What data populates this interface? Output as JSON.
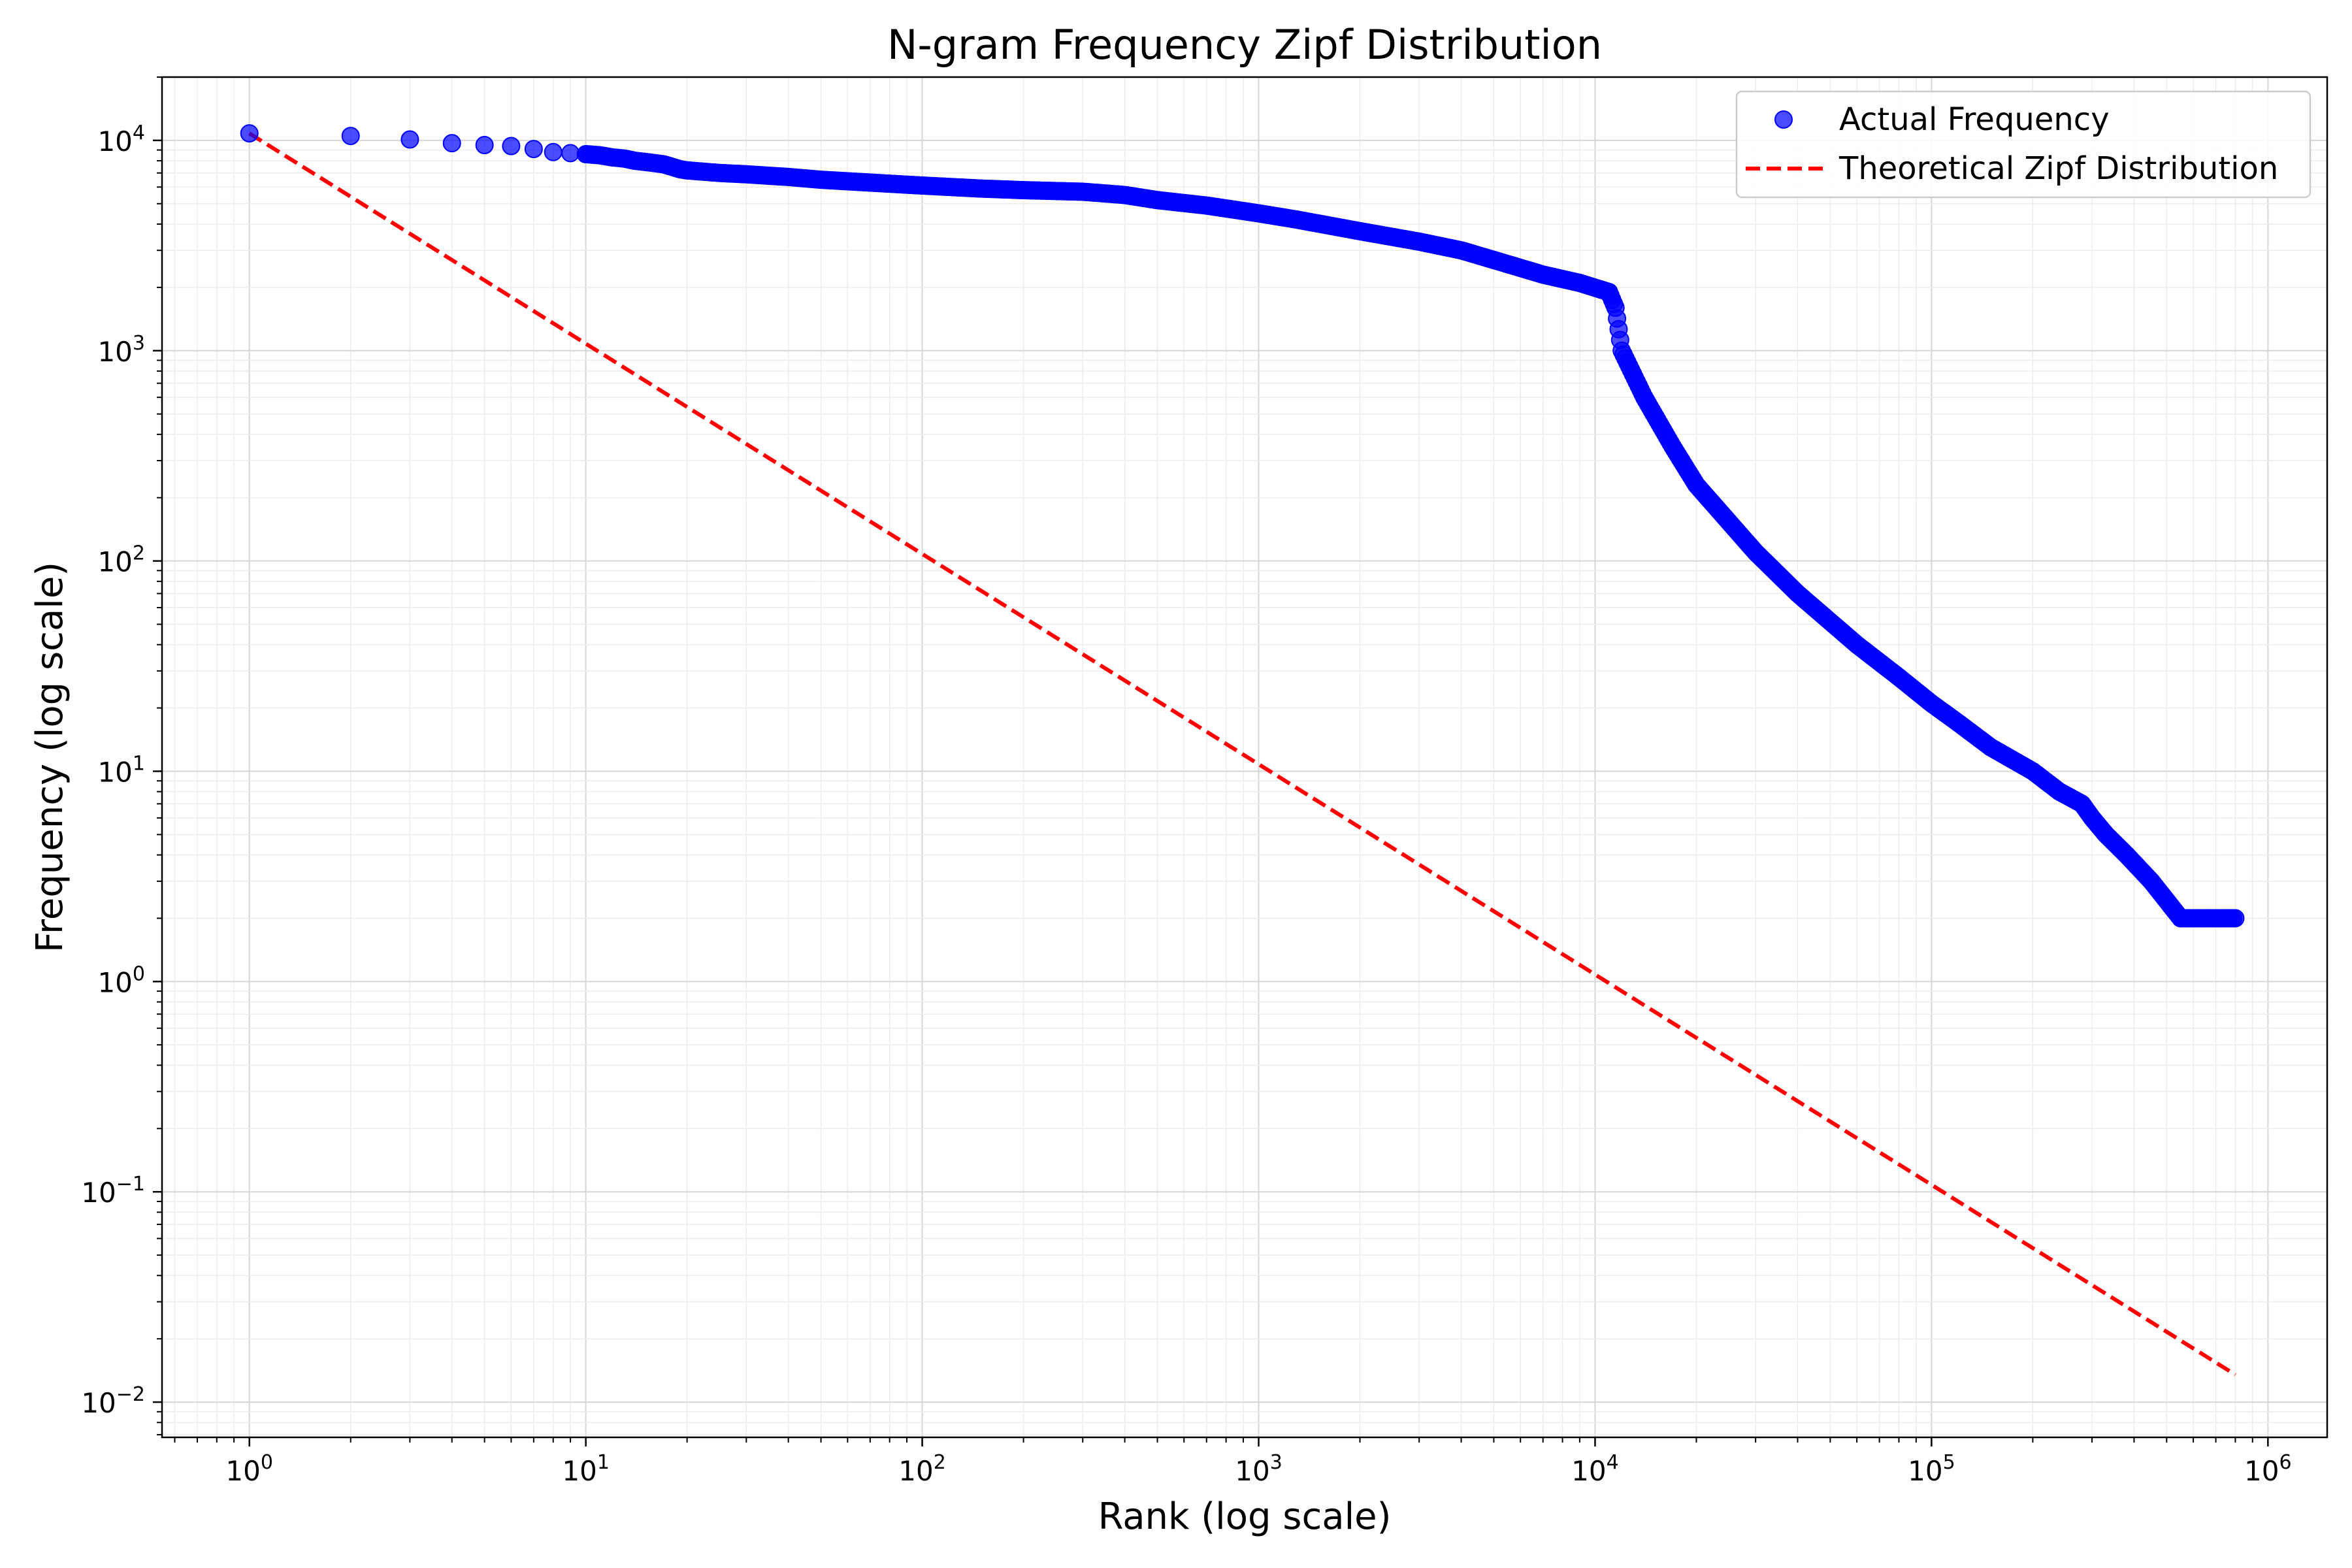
{
  "chart_data": {
    "type": "scatter",
    "title": "N-gram Frequency Zipf Distribution",
    "xlabel": "Rank (log scale)",
    "ylabel": "Frequency (log scale)",
    "x_scale": "log",
    "y_scale": "log",
    "xlim": [
      0.55,
      1500000
    ],
    "ylim": [
      0.0068,
      20000
    ],
    "x_ticks": [
      {
        "value": 1,
        "base": "10",
        "exp": "0"
      },
      {
        "value": 10,
        "base": "10",
        "exp": "1"
      },
      {
        "value": 100,
        "base": "10",
        "exp": "2"
      },
      {
        "value": 1000,
        "base": "10",
        "exp": "3"
      },
      {
        "value": 10000,
        "base": "10",
        "exp": "4"
      },
      {
        "value": 100000,
        "base": "10",
        "exp": "5"
      },
      {
        "value": 1000000,
        "base": "10",
        "exp": "6"
      }
    ],
    "y_ticks": [
      {
        "value": 0.01,
        "base": "10",
        "exp": "−2"
      },
      {
        "value": 0.1,
        "base": "10",
        "exp": "−1"
      },
      {
        "value": 1,
        "base": "10",
        "exp": "0"
      },
      {
        "value": 10,
        "base": "10",
        "exp": "1"
      },
      {
        "value": 100,
        "base": "10",
        "exp": "2"
      },
      {
        "value": 1000,
        "base": "10",
        "exp": "3"
      },
      {
        "value": 10000,
        "base": "10",
        "exp": "4"
      }
    ],
    "grid": true,
    "legend_position": "top-right",
    "series": [
      {
        "name": "Actual Frequency",
        "kind": "scatter",
        "color": "#0000ff",
        "points": [
          [
            1,
            10800
          ],
          [
            2,
            10500
          ],
          [
            3,
            10100
          ],
          [
            4,
            9700
          ],
          [
            5,
            9500
          ],
          [
            6,
            9400
          ],
          [
            7,
            9100
          ],
          [
            8,
            8800
          ],
          [
            9,
            8700
          ],
          [
            10,
            8600
          ],
          [
            11,
            8500
          ],
          [
            12,
            8300
          ],
          [
            13,
            8200
          ],
          [
            14,
            8000
          ],
          [
            15,
            7900
          ],
          [
            16,
            7800
          ],
          [
            17,
            7700
          ],
          [
            18,
            7500
          ],
          [
            19,
            7300
          ],
          [
            20,
            7200
          ],
          [
            25,
            7000
          ],
          [
            30,
            6900
          ],
          [
            40,
            6700
          ],
          [
            50,
            6500
          ],
          [
            70,
            6300
          ],
          [
            100,
            6100
          ],
          [
            150,
            5900
          ],
          [
            200,
            5800
          ],
          [
            300,
            5700
          ],
          [
            400,
            5500
          ],
          [
            500,
            5200
          ],
          [
            700,
            4900
          ],
          [
            1000,
            4500
          ],
          [
            1300,
            4200
          ],
          [
            2000,
            3700
          ],
          [
            3000,
            3300
          ],
          [
            4000,
            3000
          ],
          [
            5000,
            2700
          ],
          [
            7000,
            2300
          ],
          [
            9000,
            2100
          ],
          [
            11000,
            1900
          ],
          [
            11500,
            1600
          ],
          [
            12000,
            1000
          ],
          [
            14000,
            600
          ],
          [
            17000,
            350
          ],
          [
            20000,
            230
          ],
          [
            30000,
            110
          ],
          [
            40000,
            70
          ],
          [
            60000,
            40
          ],
          [
            80000,
            28
          ],
          [
            100000,
            21
          ],
          [
            120000,
            17
          ],
          [
            150000,
            13
          ],
          [
            200000,
            10
          ],
          [
            240000,
            8
          ],
          [
            280000,
            7
          ],
          [
            300000,
            6
          ],
          [
            330000,
            5
          ],
          [
            380000,
            4
          ],
          [
            450000,
            3
          ],
          [
            550000,
            2
          ],
          [
            800000,
            2
          ]
        ]
      },
      {
        "name": "Theoretical Zipf Distribution",
        "kind": "line",
        "style": "dashed",
        "color": "#ff0000",
        "points": [
          [
            1,
            10800
          ],
          [
            800000,
            0.0135
          ]
        ]
      }
    ]
  }
}
